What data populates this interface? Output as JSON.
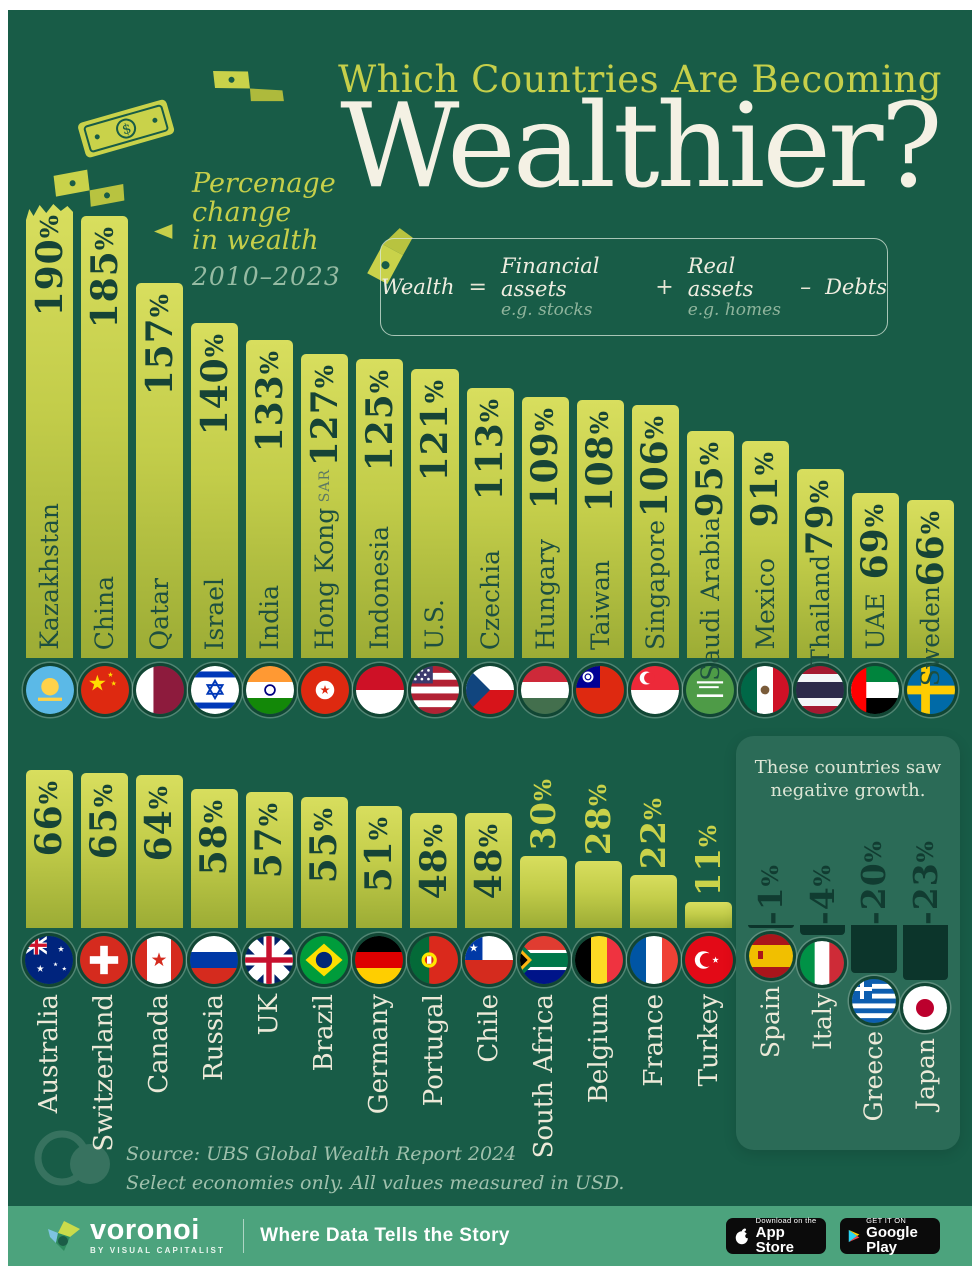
{
  "title": {
    "kicker": "Which Countries Are Becoming",
    "main": "Wealthier?"
  },
  "subtitle": {
    "lines": [
      "Percenage",
      "change",
      "in wealth"
    ],
    "period": "2010–2023"
  },
  "formula": {
    "lhs": "Wealth",
    "eq": "=",
    "term1": "Financial assets",
    "term1_sub": "e.g. stocks",
    "plus": "+",
    "term2": "Real assets",
    "term2_sub": "e.g. homes",
    "minus": "–",
    "term3": "Debts"
  },
  "chart_data": {
    "type": "bar",
    "title": "Which Countries Are Becoming Wealthier?",
    "subtitle": "Percenage change in wealth 2010–2023",
    "unit": "percent change in wealth, 2010–2023",
    "ylim": [
      -23,
      190
    ],
    "rows": [
      {
        "name": "row-1",
        "items": [
          {
            "country": "Kazakhstan",
            "value": 190,
            "label": "190%",
            "flag": "flag-kazakhstan",
            "torn": true
          },
          {
            "country": "China",
            "value": 185,
            "label": "185%",
            "flag": "flag-china"
          },
          {
            "country": "Qatar",
            "value": 157,
            "label": "157%",
            "flag": "flag-qatar"
          },
          {
            "country": "Israel",
            "value": 140,
            "label": "140%",
            "flag": "flag-israel"
          },
          {
            "country": "India",
            "value": 133,
            "label": "133%",
            "flag": "flag-india"
          },
          {
            "country": "Hong Kong",
            "suffix": "SAR",
            "value": 127,
            "label": "127%",
            "flag": "flag-hong-kong"
          },
          {
            "country": "Indonesia",
            "value": 125,
            "label": "125%",
            "flag": "flag-indonesia"
          },
          {
            "country": "U.S.",
            "value": 121,
            "label": "121%",
            "flag": "flag-us"
          },
          {
            "country": "Czechia",
            "value": 113,
            "label": "113%",
            "flag": "flag-czechia"
          },
          {
            "country": "Hungary",
            "value": 109,
            "label": "109%",
            "flag": "flag-hungary"
          },
          {
            "country": "Taiwan",
            "value": 108,
            "label": "108%",
            "flag": "flag-taiwan"
          },
          {
            "country": "Singapore",
            "value": 106,
            "label": "106%",
            "flag": "flag-singapore"
          },
          {
            "country": "Saudi Arabia",
            "value": 95,
            "label": "95%",
            "flag": "flag-saudi-arabia"
          },
          {
            "country": "Mexico",
            "value": 91,
            "label": "91%",
            "flag": "flag-mexico"
          },
          {
            "country": "Thailand",
            "value": 79,
            "label": "79%",
            "flag": "flag-thailand"
          },
          {
            "country": "UAE",
            "value": 69,
            "label": "69%",
            "flag": "flag-uae"
          },
          {
            "country": "Sweden",
            "value": 66,
            "label": "66%",
            "flag": "flag-sweden"
          }
        ]
      },
      {
        "name": "row-2",
        "items": [
          {
            "country": "Australia",
            "value": 66,
            "label": "66%",
            "flag": "flag-australia"
          },
          {
            "country": "Switzerland",
            "value": 65,
            "label": "65%",
            "flag": "flag-switzerland"
          },
          {
            "country": "Canada",
            "value": 64,
            "label": "64%",
            "flag": "flag-canada"
          },
          {
            "country": "Russia",
            "value": 58,
            "label": "58%",
            "flag": "flag-russia"
          },
          {
            "country": "UK",
            "value": 57,
            "label": "57%",
            "flag": "flag-uk"
          },
          {
            "country": "Brazil",
            "value": 55,
            "label": "55%",
            "flag": "flag-brazil"
          },
          {
            "country": "Germany",
            "value": 51,
            "label": "51%",
            "flag": "flag-germany"
          },
          {
            "country": "Portugal",
            "value": 48,
            "label": "48%",
            "flag": "flag-portugal"
          },
          {
            "country": "Chile",
            "value": 48,
            "label": "48%",
            "flag": "flag-chile"
          },
          {
            "country": "South Africa",
            "value": 30,
            "label": "30%",
            "flag": "flag-south-africa",
            "label_outside": true
          },
          {
            "country": "Belgium",
            "value": 28,
            "label": "28%",
            "flag": "flag-belgium",
            "label_outside": true
          },
          {
            "country": "France",
            "value": 22,
            "label": "22%",
            "flag": "flag-france",
            "label_outside": true
          },
          {
            "country": "Turkey",
            "value": 11,
            "label": "11%",
            "flag": "flag-turkey",
            "label_outside": true
          }
        ]
      }
    ],
    "negative": {
      "title_line1": "These countries saw",
      "title_line2": "negative growth.",
      "items": [
        {
          "country": "Spain",
          "value": -1,
          "label": "-1%",
          "flag": "flag-spain"
        },
        {
          "country": "Italy",
          "value": -4,
          "label": "-4%",
          "flag": "flag-italy"
        },
        {
          "country": "Greece",
          "value": -20,
          "label": "-20%",
          "flag": "flag-greece"
        },
        {
          "country": "Japan",
          "value": -23,
          "label": "-23%",
          "flag": "flag-japan"
        }
      ]
    },
    "legend_position": "none",
    "grid": false
  },
  "source": {
    "line1": "Source: UBS Global Wealth Report 2024",
    "line2": "Select economies only. All values measured in USD."
  },
  "footer": {
    "brand": "voronoi",
    "brand_sub": "BY VISUAL CAPITALIST",
    "tagline": "Where Data Tells the Story",
    "appstore_top": "Download on the",
    "appstore_bottom": "App Store",
    "gplay_top": "GET IT ON",
    "gplay_bottom": "Google Play"
  },
  "colors": {
    "background": "#185C47",
    "bar_top": "#D8DE5E",
    "bar_bottom": "#9CAC35",
    "bar_text": "#164436",
    "accent_yellow": "#C6CF4A",
    "title_white": "#F4F1E4",
    "cream": "#ECE9D8",
    "muted_sage": "#96BBA3",
    "negative_panel": "#2B6B57",
    "negative_bar": "#0C352B",
    "footer_green": "#4CA37D"
  }
}
